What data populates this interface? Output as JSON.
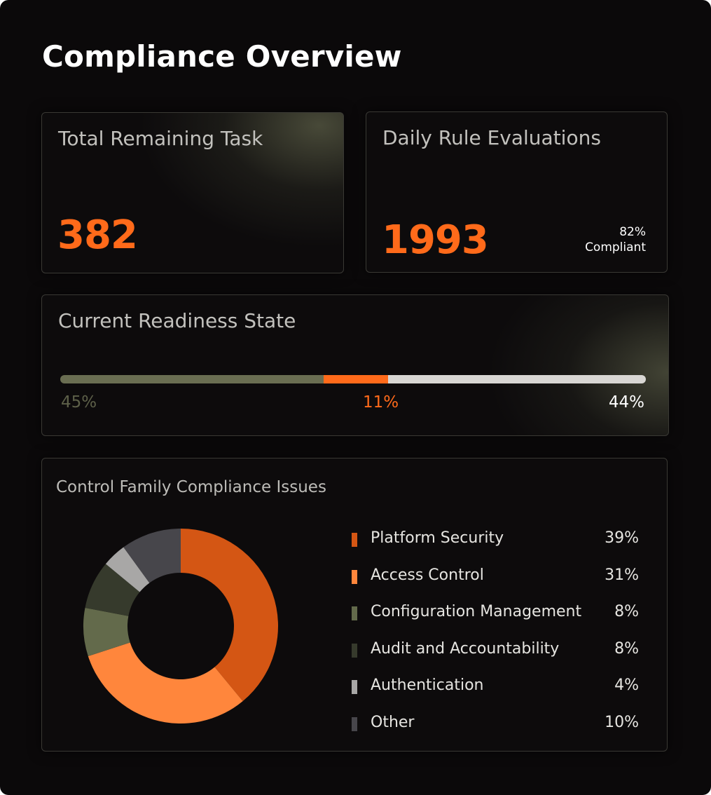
{
  "page": {
    "title": "Compliance Overview"
  },
  "total_remaining": {
    "title": "Total Remaining Task",
    "value": "382"
  },
  "daily_rules": {
    "title": "Daily Rule Evaluations",
    "value": "1993",
    "compliant_pct": "82%",
    "compliant_label": "Compliant"
  },
  "readiness": {
    "title": "Current Readiness State",
    "segments": [
      {
        "label": "45%",
        "value": 45,
        "color": "#6a6e52"
      },
      {
        "label": "11%",
        "value": 11,
        "color": "#ff6a1a"
      },
      {
        "label": "44%",
        "value": 44,
        "color": "#d8d6d3"
      }
    ]
  },
  "issues": {
    "title": "Control Family Compliance Issues",
    "items": [
      {
        "label": "Platform Security",
        "value_label": "39%",
        "value": 39,
        "color": "#d45614"
      },
      {
        "label": "Access Control",
        "value_label": "31%",
        "value": 31,
        "color": "#ff863c"
      },
      {
        "label": "Configuration Management",
        "value_label": "8%",
        "value": 8,
        "color": "#636a4b"
      },
      {
        "label": "Audit and Accountability",
        "value_label": "8%",
        "value": 8,
        "color": "#363a2c"
      },
      {
        "label": "Authentication",
        "value_label": "4%",
        "value": 4,
        "color": "#a8a7a6"
      },
      {
        "label": "Other",
        "value_label": "10%",
        "value": 10,
        "color": "#47464b"
      }
    ]
  }
}
